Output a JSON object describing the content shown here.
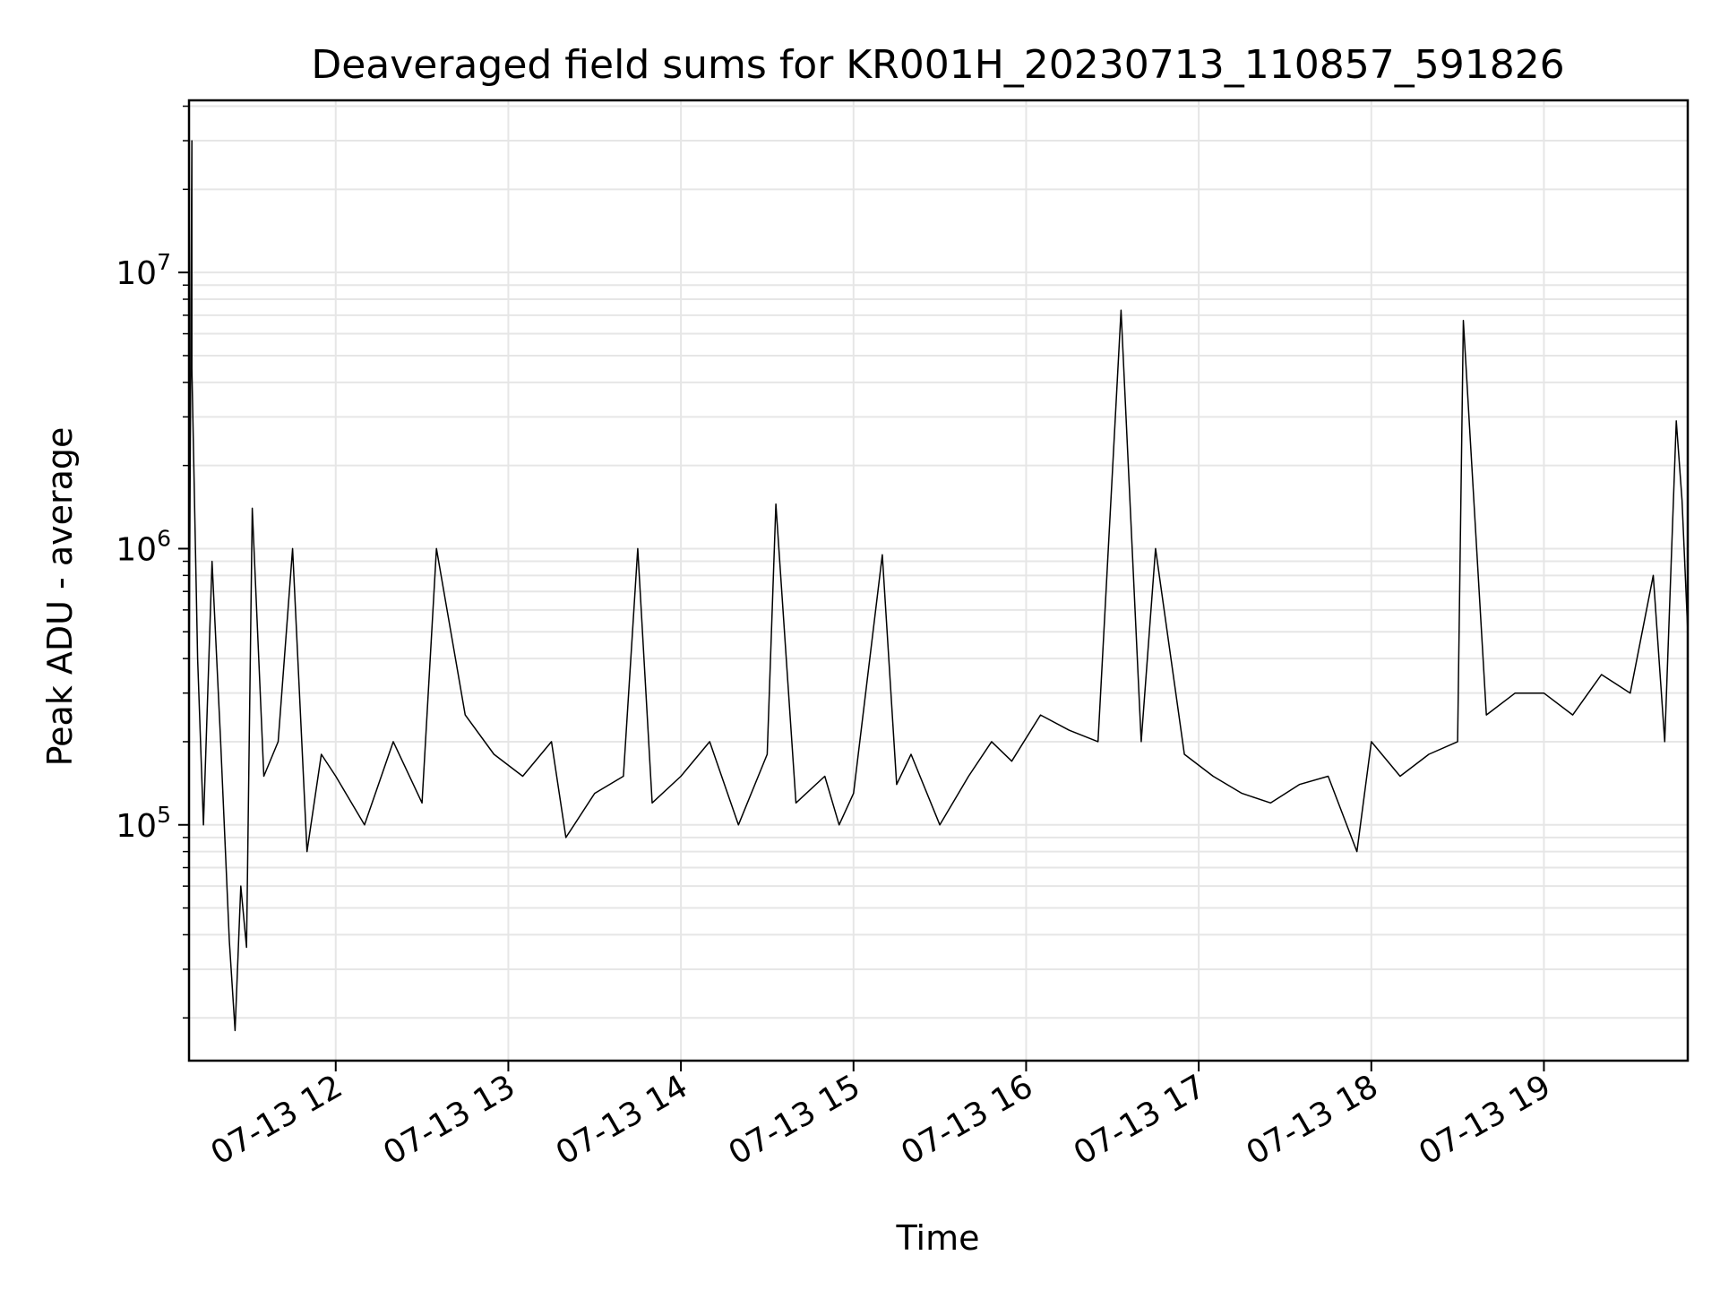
{
  "chart_data": {
    "type": "line",
    "title": "Deaveraged field sums for KR001H_20230713_110857_591826",
    "xlabel": "Time",
    "ylabel": "Peak ADU - average",
    "yscale": "log",
    "ylim": [
      14000,
      42000000
    ],
    "xlim": [
      "2023-07-13 11:09",
      "2023-07-13 19:50"
    ],
    "grid": true,
    "line_color": "#000000",
    "grid_color": "#e6e6e6",
    "x_ticks": [
      {
        "value": "2023-07-13 12:00",
        "label": "07-13 12"
      },
      {
        "value": "2023-07-13 13:00",
        "label": "07-13 13"
      },
      {
        "value": "2023-07-13 14:00",
        "label": "07-13 14"
      },
      {
        "value": "2023-07-13 15:00",
        "label": "07-13 15"
      },
      {
        "value": "2023-07-13 16:00",
        "label": "07-13 16"
      },
      {
        "value": "2023-07-13 17:00",
        "label": "07-13 17"
      },
      {
        "value": "2023-07-13 18:00",
        "label": "07-13 18"
      },
      {
        "value": "2023-07-13 19:00",
        "label": "07-13 19"
      }
    ],
    "y_ticks": [
      {
        "value": 100000,
        "base": "10",
        "exp": "5"
      },
      {
        "value": 1000000,
        "base": "10",
        "exp": "6"
      },
      {
        "value": 10000000,
        "base": "10",
        "exp": "7"
      }
    ],
    "series": [
      {
        "x": [
          "2023-07-13 11:09",
          "2023-07-13 11:10",
          "2023-07-13 11:10",
          "2023-07-13 11:12",
          "2023-07-13 11:14",
          "2023-07-13 11:17",
          "2023-07-13 11:20",
          "2023-07-13 11:23",
          "2023-07-13 11:25",
          "2023-07-13 11:27",
          "2023-07-13 11:29",
          "2023-07-13 11:31",
          "2023-07-13 11:35",
          "2023-07-13 11:40",
          "2023-07-13 11:45",
          "2023-07-13 11:50",
          "2023-07-13 11:55",
          "2023-07-13 12:00",
          "2023-07-13 12:10",
          "2023-07-13 12:20",
          "2023-07-13 12:30",
          "2023-07-13 12:35",
          "2023-07-13 12:45",
          "2023-07-13 12:55",
          "2023-07-13 13:05",
          "2023-07-13 13:15",
          "2023-07-13 13:20",
          "2023-07-13 13:30",
          "2023-07-13 13:40",
          "2023-07-13 13:45",
          "2023-07-13 13:50",
          "2023-07-13 14:00",
          "2023-07-13 14:10",
          "2023-07-13 14:20",
          "2023-07-13 14:30",
          "2023-07-13 14:33",
          "2023-07-13 14:40",
          "2023-07-13 14:50",
          "2023-07-13 14:55",
          "2023-07-13 15:00",
          "2023-07-13 15:10",
          "2023-07-13 15:15",
          "2023-07-13 15:20",
          "2023-07-13 15:30",
          "2023-07-13 15:40",
          "2023-07-13 15:48",
          "2023-07-13 15:55",
          "2023-07-13 16:05",
          "2023-07-13 16:15",
          "2023-07-13 16:25",
          "2023-07-13 16:33",
          "2023-07-13 16:40",
          "2023-07-13 16:45",
          "2023-07-13 16:55",
          "2023-07-13 17:05",
          "2023-07-13 17:15",
          "2023-07-13 17:25",
          "2023-07-13 17:35",
          "2023-07-13 17:45",
          "2023-07-13 17:55",
          "2023-07-13 18:00",
          "2023-07-13 18:10",
          "2023-07-13 18:20",
          "2023-07-13 18:30",
          "2023-07-13 18:32",
          "2023-07-13 18:40",
          "2023-07-13 18:50",
          "2023-07-13 19:00",
          "2023-07-13 19:10",
          "2023-07-13 19:20",
          "2023-07-13 19:30",
          "2023-07-13 19:38",
          "2023-07-13 19:42",
          "2023-07-13 19:46",
          "2023-07-13 19:48",
          "2023-07-13 19:50"
        ],
        "values": [
          300000,
          30000000,
          4500000,
          400000,
          100000,
          900000,
          200000,
          38000,
          18000,
          60000,
          36000,
          1400000,
          150000,
          200000,
          1000000,
          80000,
          180000,
          150000,
          100000,
          200000,
          120000,
          1000000,
          250000,
          180000,
          150000,
          200000,
          90000,
          130000,
          150000,
          1000000,
          120000,
          150000,
          200000,
          100000,
          180000,
          1450000,
          120000,
          150000,
          100000,
          130000,
          950000,
          140000,
          180000,
          100000,
          150000,
          200000,
          170000,
          250000,
          220000,
          200000,
          7300000,
          200000,
          1000000,
          180000,
          150000,
          130000,
          120000,
          140000,
          150000,
          80000,
          200000,
          150000,
          180000,
          200000,
          6700000,
          250000,
          300000,
          300000,
          250000,
          350000,
          300000,
          800000,
          200000,
          2900000,
          1500000,
          500000
        ]
      }
    ]
  }
}
